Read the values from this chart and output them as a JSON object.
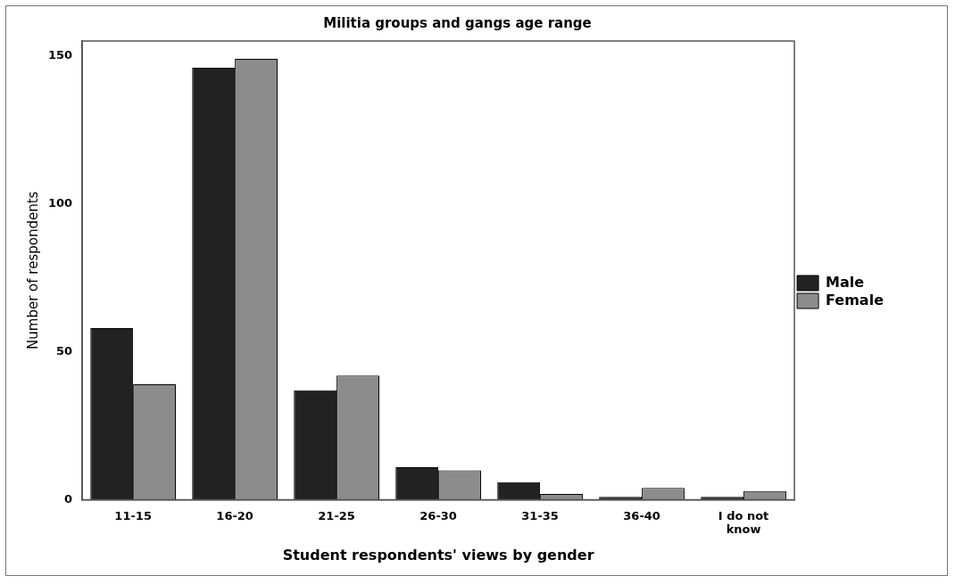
{
  "chart_data": {
    "type": "bar",
    "title": "Militia groups and gangs age range",
    "xlabel": "Student respondents' views by gender",
    "ylabel": "Number of respondents",
    "categories": [
      "11-15",
      "16-20",
      "21-25",
      "26-30",
      "31-35",
      "36-40",
      "I do not know"
    ],
    "series": [
      {
        "name": "Male",
        "color": "#222222",
        "values": [
          58,
          146,
          37,
          11,
          6,
          1,
          1
        ]
      },
      {
        "name": "Female",
        "color": "#8c8c8c",
        "values": [
          39,
          149,
          42,
          10,
          2,
          4,
          3
        ]
      }
    ],
    "ylim": [
      0,
      155
    ],
    "yticks": [
      0,
      50,
      100,
      150
    ],
    "grid": false,
    "legend": "right"
  }
}
